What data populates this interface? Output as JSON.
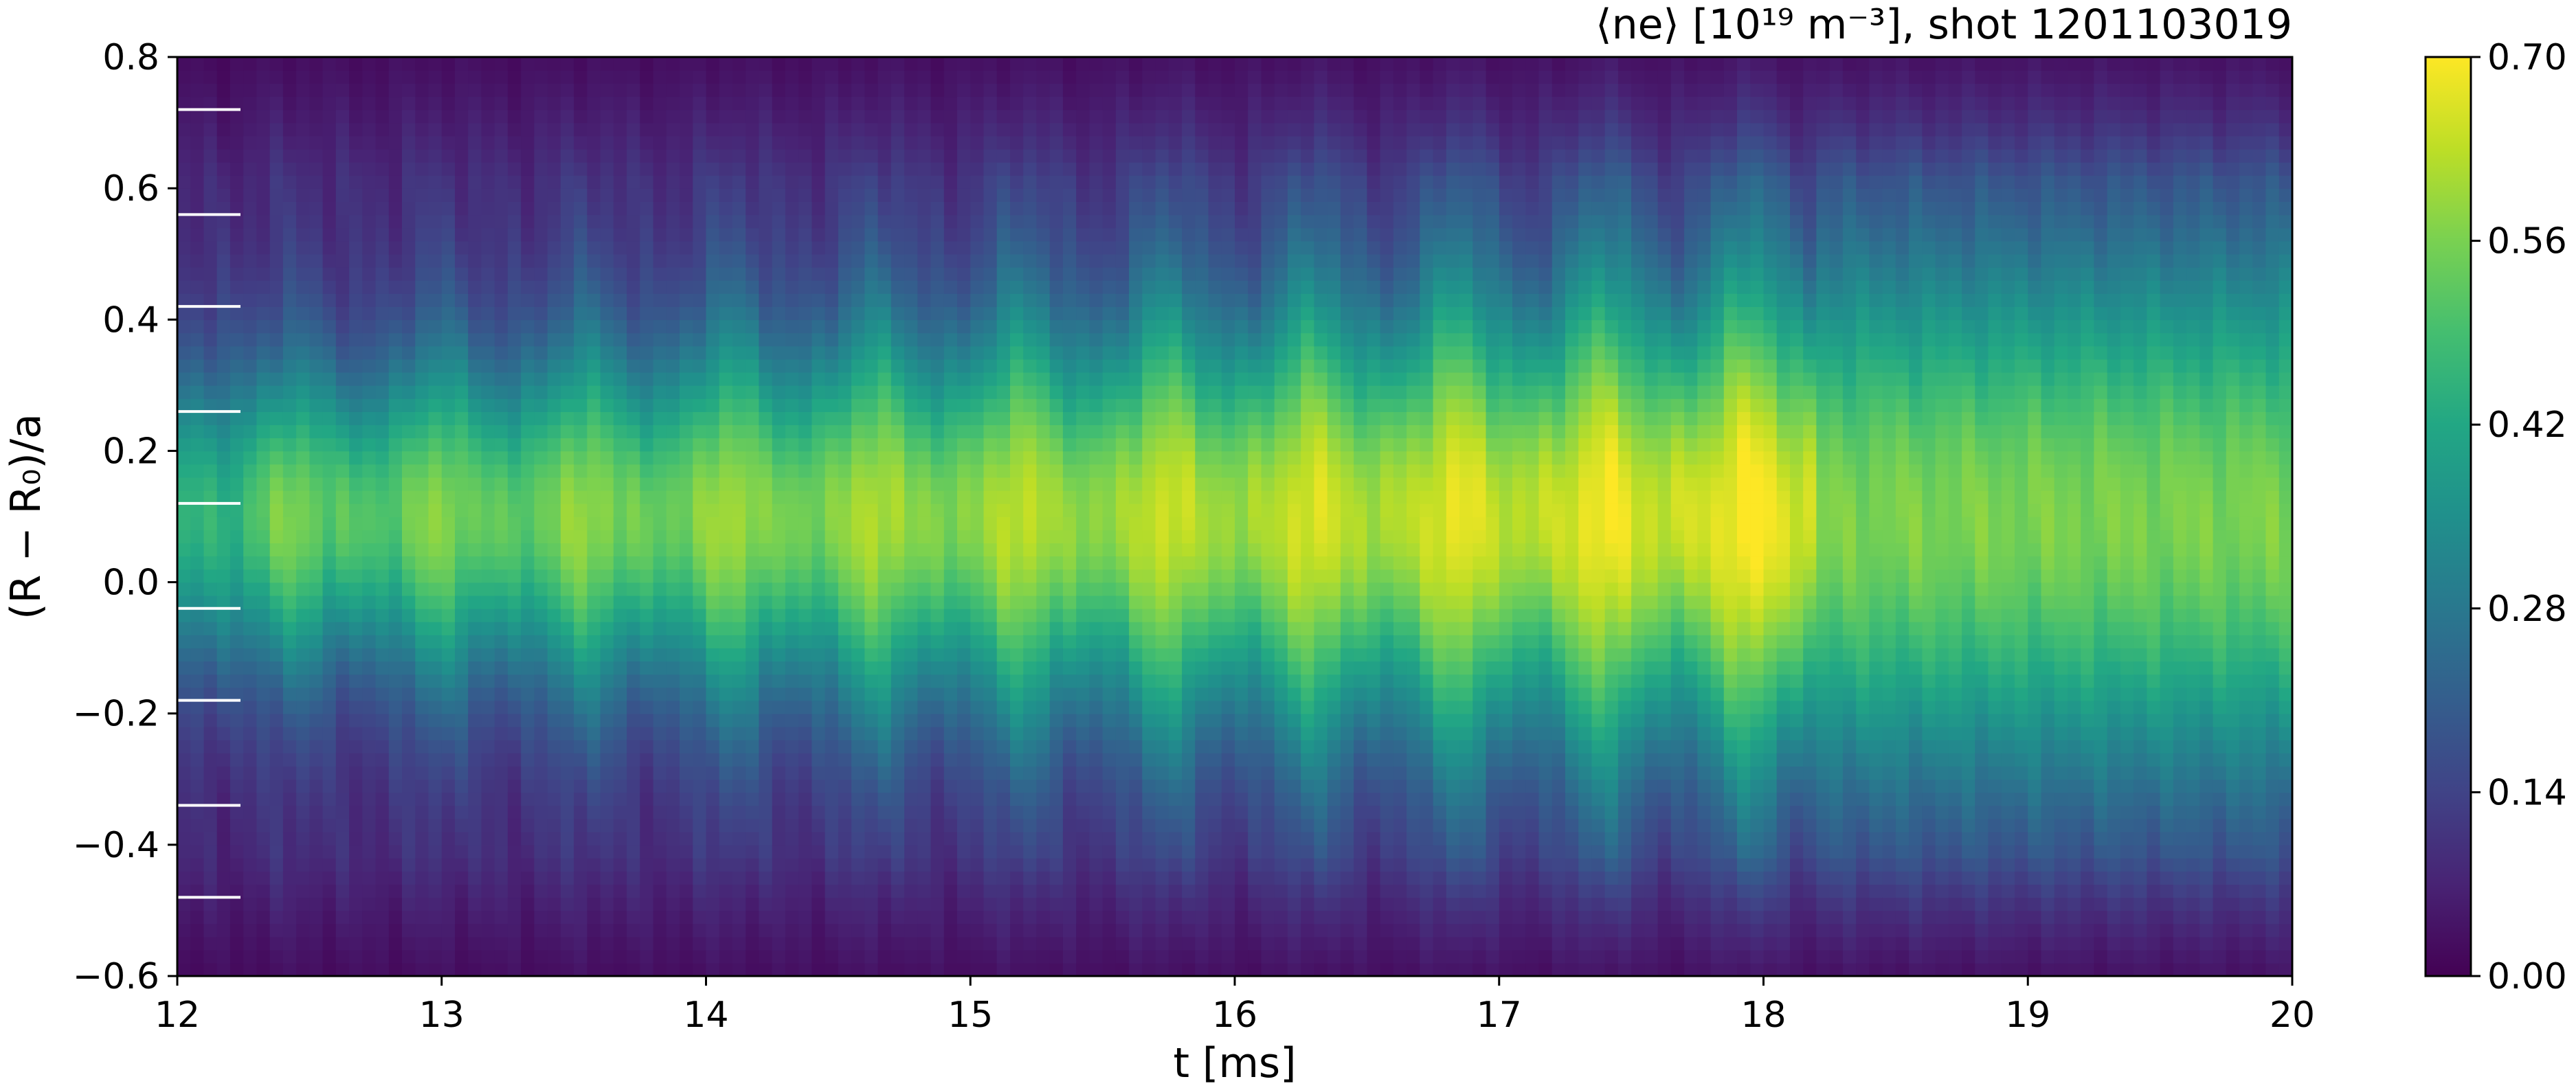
{
  "chart_data": {
    "type": "heatmap",
    "title": "⟨ne⟩ [10¹⁹ m⁻³], shot 1201103019",
    "xlabel": "t [ms]",
    "ylabel": "(R − R₀)/a",
    "xlim": [
      12,
      20
    ],
    "ylim": [
      -0.6,
      0.8
    ],
    "x_ticks": [
      12,
      13,
      14,
      15,
      16,
      17,
      18,
      19,
      20
    ],
    "x_tick_labels": [
      "12",
      "13",
      "14",
      "15",
      "16",
      "17",
      "18",
      "19",
      "20"
    ],
    "y_ticks": [
      -0.6,
      -0.4,
      -0.2,
      0.0,
      0.2,
      0.4,
      0.6,
      0.8
    ],
    "y_tick_labels": [
      "−0.6",
      "−0.4",
      "−0.2",
      "0.0",
      "0.2",
      "0.4",
      "0.6",
      "0.8"
    ],
    "colorbar": {
      "range": [
        0.0,
        0.7
      ],
      "ticks": [
        0.0,
        0.14,
        0.28,
        0.42,
        0.56,
        0.7
      ],
      "tick_labels": [
        "0.00",
        "0.14",
        "0.28",
        "0.42",
        "0.56",
        "0.70"
      ],
      "colormap": "viridis"
    },
    "channel_markers_y": [
      0.72,
      0.56,
      0.42,
      0.26,
      0.12,
      -0.04,
      -0.18,
      -0.34,
      -0.48
    ],
    "grid": false,
    "description_of_field": {
      "center_y": 0.1,
      "peak_values": [
        0.58,
        0.6,
        0.62,
        0.64,
        0.68,
        0.7
      ],
      "oscillation_period_ms": 0.55,
      "quiet_after_ms": 18.2
    }
  },
  "colors": {
    "marker": "#ffffff",
    "axis": "#000000"
  }
}
